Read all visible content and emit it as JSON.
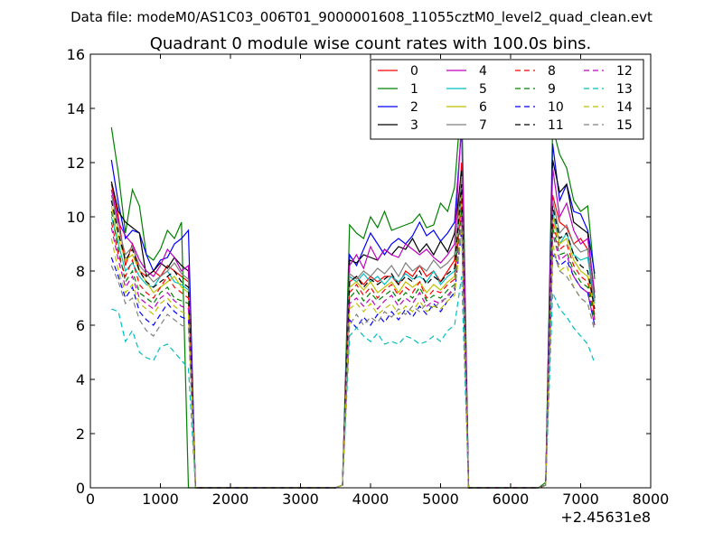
{
  "suptitle": "Data file: modeM0/AS1C03_006T01_9000001608_11055cztM0_level2_quad_clean.evt",
  "chart_data": {
    "type": "line",
    "title": "Quadrant 0 module wise count rates with 100.0s bins.",
    "xlabel": "",
    "ylabel": "",
    "x_offset_label": "+2.45631e8",
    "xlim": [
      0,
      8000
    ],
    "ylim": [
      0,
      16
    ],
    "x_ticks": [
      0,
      1000,
      2000,
      3000,
      4000,
      5000,
      6000,
      7000,
      8000
    ],
    "y_ticks": [
      0,
      2,
      4,
      6,
      8,
      10,
      12,
      14,
      16
    ],
    "grid": false,
    "legend_position": "top-right",
    "legend_columns": 4,
    "x": [
      300,
      400,
      500,
      600,
      700,
      800,
      900,
      1000,
      1100,
      1200,
      1300,
      1400,
      1500,
      1600,
      1700,
      1800,
      1900,
      2000,
      2100,
      2200,
      2300,
      2400,
      2500,
      2600,
      2700,
      2800,
      2900,
      3000,
      3100,
      3200,
      3300,
      3400,
      3500,
      3600,
      3700,
      3800,
      3900,
      4000,
      4100,
      4200,
      4300,
      4400,
      4500,
      4600,
      4700,
      4800,
      4900,
      5000,
      5100,
      5200,
      5300,
      5400,
      5500,
      5600,
      5700,
      5800,
      5900,
      6000,
      6100,
      6200,
      6300,
      6400,
      6500,
      6600,
      6700,
      6800,
      6900,
      7000,
      7100,
      7200
    ],
    "series": [
      {
        "name": "0",
        "color": "#ff0000",
        "dash": "solid",
        "values": [
          11.2,
          10.0,
          8.2,
          9.0,
          8.0,
          7.8,
          8.0,
          7.8,
          8.2,
          8.0,
          7.8,
          7.6,
          0.0,
          0,
          0,
          0,
          0,
          0,
          0,
          0,
          0,
          0,
          0,
          0,
          0,
          0,
          0,
          0,
          0,
          0,
          0,
          0,
          0,
          0.1,
          7.6,
          7.8,
          7.5,
          7.8,
          7.6,
          7.8,
          7.8,
          7.5,
          8.0,
          7.8,
          8.2,
          7.8,
          8.0,
          7.6,
          8.0,
          8.4,
          12.0,
          0.0,
          0,
          0,
          0,
          0,
          0,
          0,
          0,
          0,
          0,
          0,
          0.1,
          10.8,
          9.8,
          9.6,
          9.0,
          9.2,
          8.8,
          6.2
        ]
      },
      {
        "name": "1",
        "color": "#008000",
        "dash": "solid",
        "values": [
          13.3,
          11.6,
          9.4,
          11.0,
          10.4,
          8.6,
          8.4,
          8.8,
          9.5,
          9.2,
          9.8,
          0.0,
          0.0,
          0,
          0,
          0,
          0,
          0,
          0,
          0,
          0,
          0,
          0,
          0,
          0,
          0,
          0,
          0,
          0,
          0,
          0,
          0,
          0,
          0.1,
          9.7,
          9.4,
          9.2,
          10.0,
          9.6,
          10.2,
          9.5,
          9.6,
          9.7,
          9.8,
          10.1,
          9.6,
          9.7,
          10.5,
          10.2,
          11.1,
          14.5,
          0.0,
          0,
          0,
          0,
          0,
          0,
          0,
          0,
          0,
          0,
          0,
          0.2,
          13.3,
          12.3,
          11.8,
          10.6,
          10.2,
          10.4,
          7.7
        ]
      },
      {
        "name": "2",
        "color": "#0000ff",
        "dash": "solid",
        "values": [
          12.1,
          10.5,
          9.2,
          9.5,
          9.4,
          8.6,
          8.0,
          8.4,
          8.5,
          9.0,
          9.2,
          9.5,
          0.0,
          0,
          0,
          0,
          0,
          0,
          0,
          0,
          0,
          0,
          0,
          0,
          0,
          0,
          0,
          0,
          0,
          0,
          0,
          0,
          0,
          0.1,
          8.6,
          8.2,
          8.8,
          9.4,
          9.0,
          8.6,
          9.0,
          9.2,
          9.0,
          9.3,
          9.8,
          9.3,
          9.5,
          9.1,
          9.4,
          9.8,
          13.3,
          0.0,
          0,
          0,
          0,
          0,
          0,
          0,
          0,
          0,
          0,
          0,
          0.1,
          12.7,
          10.6,
          11.2,
          10.2,
          10.1,
          9.5,
          7.9
        ]
      },
      {
        "name": "3",
        "color": "#000000",
        "dash": "solid",
        "values": [
          11.3,
          10.2,
          9.8,
          9.6,
          9.4,
          7.8,
          8.0,
          8.3,
          8.1,
          8.5,
          8.2,
          8.0,
          0.0,
          0,
          0,
          0,
          0,
          0,
          0,
          0,
          0,
          0,
          0,
          0,
          0,
          0,
          0,
          0,
          0,
          0,
          0,
          0,
          0,
          0.1,
          8.4,
          8.3,
          8.6,
          8.5,
          8.4,
          8.8,
          8.6,
          8.9,
          8.8,
          9.2,
          8.7,
          9.0,
          8.6,
          9.1,
          8.7,
          9.4,
          11.7,
          0.0,
          0,
          0,
          0,
          0,
          0,
          0,
          0,
          0,
          0,
          0,
          0.1,
          12.1,
          10.9,
          11.2,
          9.8,
          9.6,
          9.4,
          7.0
        ]
      },
      {
        "name": "4",
        "color": "#bf00bf",
        "dash": "solid",
        "values": [
          11.0,
          9.8,
          9.3,
          9.0,
          8.4,
          8.0,
          7.8,
          8.2,
          8.8,
          8.5,
          8.0,
          8.2,
          0.0,
          0,
          0,
          0,
          0,
          0,
          0,
          0,
          0,
          0,
          0,
          0,
          0,
          0,
          0,
          0,
          0,
          0,
          0,
          0,
          0,
          0.1,
          8.2,
          8.6,
          8.1,
          8.9,
          8.4,
          8.8,
          8.6,
          8.5,
          9.0,
          8.8,
          8.6,
          8.8,
          8.5,
          8.3,
          8.6,
          9.0,
          13.6,
          0.0,
          0,
          0,
          0,
          0,
          0,
          0,
          0,
          0,
          0,
          0,
          0.1,
          11.8,
          10.0,
          10.5,
          9.5,
          9.0,
          9.2,
          7.2
        ]
      },
      {
        "name": "5",
        "color": "#00bfbf",
        "dash": "solid",
        "values": [
          10.0,
          9.0,
          8.0,
          8.3,
          7.8,
          7.5,
          7.4,
          7.8,
          8.0,
          7.6,
          7.5,
          7.3,
          0.0,
          0,
          0,
          0,
          0,
          0,
          0,
          0,
          0,
          0,
          0,
          0,
          0,
          0,
          0,
          0,
          0,
          0,
          0,
          0,
          0,
          0.1,
          7.8,
          7.6,
          7.9,
          7.6,
          7.8,
          7.5,
          7.8,
          7.6,
          7.9,
          7.7,
          7.8,
          7.6,
          8.0,
          7.5,
          7.8,
          8.0,
          11.0,
          0.0,
          0,
          0,
          0,
          0,
          0,
          0,
          0,
          0,
          0,
          0,
          0.1,
          10.2,
          9.0,
          9.4,
          8.6,
          8.4,
          8.5,
          6.8
        ]
      },
      {
        "name": "6",
        "color": "#bfbf00",
        "dash": "solid",
        "values": [
          10.4,
          9.2,
          8.4,
          8.6,
          8.0,
          7.6,
          7.2,
          7.4,
          7.6,
          7.8,
          7.4,
          7.2,
          0.0,
          0,
          0,
          0,
          0,
          0,
          0,
          0,
          0,
          0,
          0,
          0,
          0,
          0,
          0,
          0,
          0,
          0,
          0,
          0,
          0,
          0.1,
          7.4,
          7.6,
          7.3,
          7.6,
          7.2,
          7.4,
          7.6,
          7.2,
          7.6,
          7.4,
          7.6,
          7.2,
          7.5,
          7.3,
          7.6,
          7.8,
          10.8,
          0.0,
          0,
          0,
          0,
          0,
          0,
          0,
          0,
          0,
          0,
          0,
          0.1,
          10.0,
          9.0,
          9.2,
          8.4,
          8.0,
          7.8,
          6.6
        ]
      },
      {
        "name": "7",
        "color": "#808080",
        "dash": "solid",
        "values": [
          10.8,
          9.6,
          8.6,
          8.9,
          8.2,
          7.9,
          7.6,
          7.8,
          8.0,
          8.3,
          7.9,
          7.7,
          0.0,
          0,
          0,
          0,
          0,
          0,
          0,
          0,
          0,
          0,
          0,
          0,
          0,
          0,
          0,
          0,
          0,
          0,
          0,
          0,
          0,
          0.1,
          7.9,
          7.7,
          8.0,
          7.8,
          8.1,
          7.9,
          8.2,
          7.8,
          8.3,
          8.0,
          8.2,
          8.0,
          8.4,
          8.1,
          8.3,
          8.6,
          11.5,
          0.0,
          0,
          0,
          0,
          0,
          0,
          0,
          0,
          0,
          0,
          0,
          0.1,
          10.6,
          9.4,
          9.7,
          9.0,
          8.7,
          8.8,
          6.9
        ]
      },
      {
        "name": "8",
        "color": "#ff0000",
        "dash": "dashed",
        "values": [
          9.8,
          8.6,
          7.8,
          8.4,
          7.5,
          7.2,
          7.0,
          7.4,
          7.8,
          7.4,
          7.2,
          7.0,
          0.0,
          0,
          0,
          0,
          0,
          0,
          0,
          0,
          0,
          0,
          0,
          0,
          0,
          0,
          0,
          0,
          0,
          0,
          0,
          0,
          0,
          0.1,
          7.2,
          7.5,
          7.1,
          7.4,
          7.0,
          7.3,
          7.5,
          7.1,
          7.4,
          7.2,
          7.6,
          7.0,
          7.3,
          7.2,
          7.5,
          7.7,
          10.6,
          0.0,
          0,
          0,
          0,
          0,
          0,
          0,
          0,
          0,
          0,
          0,
          0.1,
          9.8,
          8.8,
          9.0,
          8.2,
          7.8,
          7.6,
          6.4
        ]
      },
      {
        "name": "9",
        "color": "#008000",
        "dash": "dashed",
        "values": [
          10.2,
          8.8,
          7.6,
          8.0,
          7.2,
          7.0,
          6.8,
          7.2,
          7.4,
          7.0,
          6.9,
          6.8,
          0.0,
          0,
          0,
          0,
          0,
          0,
          0,
          0,
          0,
          0,
          0,
          0,
          0,
          0,
          0,
          0,
          0,
          0,
          0,
          0,
          0,
          0.1,
          7.0,
          7.3,
          6.9,
          7.2,
          6.9,
          7.1,
          7.3,
          6.9,
          7.2,
          7.0,
          7.4,
          6.9,
          7.1,
          7.0,
          7.3,
          7.5,
          10.3,
          0.0,
          0,
          0,
          0,
          0,
          0,
          0,
          0,
          0,
          0,
          0,
          0.1,
          9.6,
          8.6,
          8.7,
          8.0,
          7.6,
          7.4,
          6.2
        ]
      },
      {
        "name": "10",
        "color": "#0000ff",
        "dash": "dashed",
        "values": [
          8.5,
          7.8,
          7.0,
          7.4,
          6.5,
          6.2,
          6.0,
          6.4,
          6.8,
          6.5,
          6.3,
          6.2,
          0.0,
          0,
          0,
          0,
          0,
          0,
          0,
          0,
          0,
          0,
          0,
          0,
          0,
          0,
          0,
          0,
          0,
          0,
          0,
          0,
          0,
          0.1,
          6.2,
          5.9,
          6.3,
          6.0,
          6.4,
          6.1,
          6.5,
          6.2,
          6.6,
          6.3,
          6.7,
          6.4,
          6.8,
          6.5,
          6.9,
          7.2,
          9.5,
          0.0,
          0,
          0,
          0,
          0,
          0,
          0,
          0,
          0,
          0,
          0,
          0.1,
          8.6,
          8.2,
          8.4,
          7.8,
          7.4,
          7.2,
          6.0
        ]
      },
      {
        "name": "11",
        "color": "#000000",
        "dash": "dashed",
        "values": [
          10.6,
          9.4,
          8.4,
          8.8,
          8.0,
          7.6,
          7.4,
          7.6,
          7.8,
          8.0,
          7.6,
          7.4,
          0.0,
          0,
          0,
          0,
          0,
          0,
          0,
          0,
          0,
          0,
          0,
          0,
          0,
          0,
          0,
          0,
          0,
          0,
          0,
          0,
          0,
          0.1,
          7.6,
          7.8,
          7.4,
          7.7,
          7.5,
          7.7,
          7.9,
          7.5,
          7.8,
          7.6,
          8.0,
          7.5,
          7.8,
          7.6,
          7.9,
          8.1,
          11.2,
          0.0,
          0,
          0,
          0,
          0,
          0,
          0,
          0,
          0,
          0,
          0,
          0.1,
          10.4,
          9.2,
          9.4,
          8.6,
          8.2,
          8.0,
          6.6
        ]
      },
      {
        "name": "12",
        "color": "#bf00bf",
        "dash": "dashed",
        "values": [
          9.6,
          8.4,
          7.4,
          7.8,
          7.0,
          6.8,
          6.6,
          7.0,
          7.2,
          6.9,
          6.7,
          6.6,
          0.0,
          0,
          0,
          0,
          0,
          0,
          0,
          0,
          0,
          0,
          0,
          0,
          0,
          0,
          0,
          0,
          0,
          0,
          0,
          0,
          0,
          0.1,
          6.8,
          7.0,
          6.7,
          7.0,
          6.6,
          6.9,
          7.1,
          6.7,
          7.0,
          6.8,
          7.2,
          6.7,
          6.9,
          6.8,
          7.1,
          7.4,
          10.0,
          0.0,
          0,
          0,
          0,
          0,
          0,
          0,
          0,
          0,
          0,
          0,
          0.1,
          9.4,
          8.4,
          8.6,
          7.8,
          7.4,
          7.2,
          6.0
        ]
      },
      {
        "name": "13",
        "color": "#00bfbf",
        "dash": "dashed",
        "values": [
          6.6,
          6.5,
          5.4,
          5.8,
          5.0,
          4.8,
          4.7,
          5.2,
          5.3,
          5.0,
          4.7,
          4.4,
          0.0,
          0,
          0,
          0,
          0,
          0,
          0,
          0,
          0,
          0,
          0,
          0,
          0,
          0,
          0,
          0,
          0,
          0,
          0,
          0,
          0,
          0.1,
          5.6,
          5.9,
          5.6,
          5.4,
          5.7,
          5.3,
          5.4,
          5.3,
          5.6,
          5.5,
          5.3,
          5.4,
          5.6,
          5.4,
          5.8,
          6.0,
          7.8,
          0.0,
          0,
          0,
          0,
          0,
          0,
          0,
          0,
          0,
          0,
          0,
          0.1,
          7.2,
          6.6,
          6.3,
          5.9,
          5.6,
          5.3,
          4.6
        ]
      },
      {
        "name": "14",
        "color": "#bfbf00",
        "dash": "dashed",
        "values": [
          9.2,
          8.0,
          7.2,
          7.5,
          6.8,
          6.6,
          6.4,
          6.8,
          7.0,
          6.7,
          6.5,
          6.4,
          0.0,
          0,
          0,
          0,
          0,
          0,
          0,
          0,
          0,
          0,
          0,
          0,
          0,
          0,
          0,
          0,
          0,
          0,
          0,
          0,
          0,
          0.1,
          6.6,
          6.8,
          6.5,
          6.8,
          6.4,
          6.6,
          6.8,
          6.4,
          6.7,
          6.5,
          6.9,
          6.5,
          6.7,
          6.6,
          6.9,
          7.1,
          9.6,
          0.0,
          0,
          0,
          0,
          0,
          0,
          0,
          0,
          0,
          0,
          0,
          0.1,
          9.0,
          8.0,
          8.2,
          7.4,
          7.0,
          6.8,
          5.8
        ]
      },
      {
        "name": "15",
        "color": "#808080",
        "dash": "dashed",
        "values": [
          8.2,
          7.6,
          6.8,
          7.0,
          6.2,
          5.8,
          5.6,
          6.0,
          6.4,
          6.2,
          6.0,
          5.9,
          0.0,
          0,
          0,
          0,
          0,
          0,
          0,
          0,
          0,
          0,
          0,
          0,
          0,
          0,
          0,
          0,
          0,
          0,
          0,
          0,
          0,
          0.1,
          6.0,
          6.4,
          6.0,
          6.3,
          6.1,
          6.5,
          6.3,
          6.6,
          6.4,
          6.7,
          6.5,
          6.8,
          6.6,
          6.9,
          7.0,
          7.4,
          9.8,
          0.0,
          0,
          0,
          0,
          0,
          0,
          0,
          0,
          0,
          0,
          0,
          0.1,
          8.8,
          8.0,
          7.8,
          7.4,
          7.0,
          6.8,
          5.8
        ]
      }
    ]
  }
}
